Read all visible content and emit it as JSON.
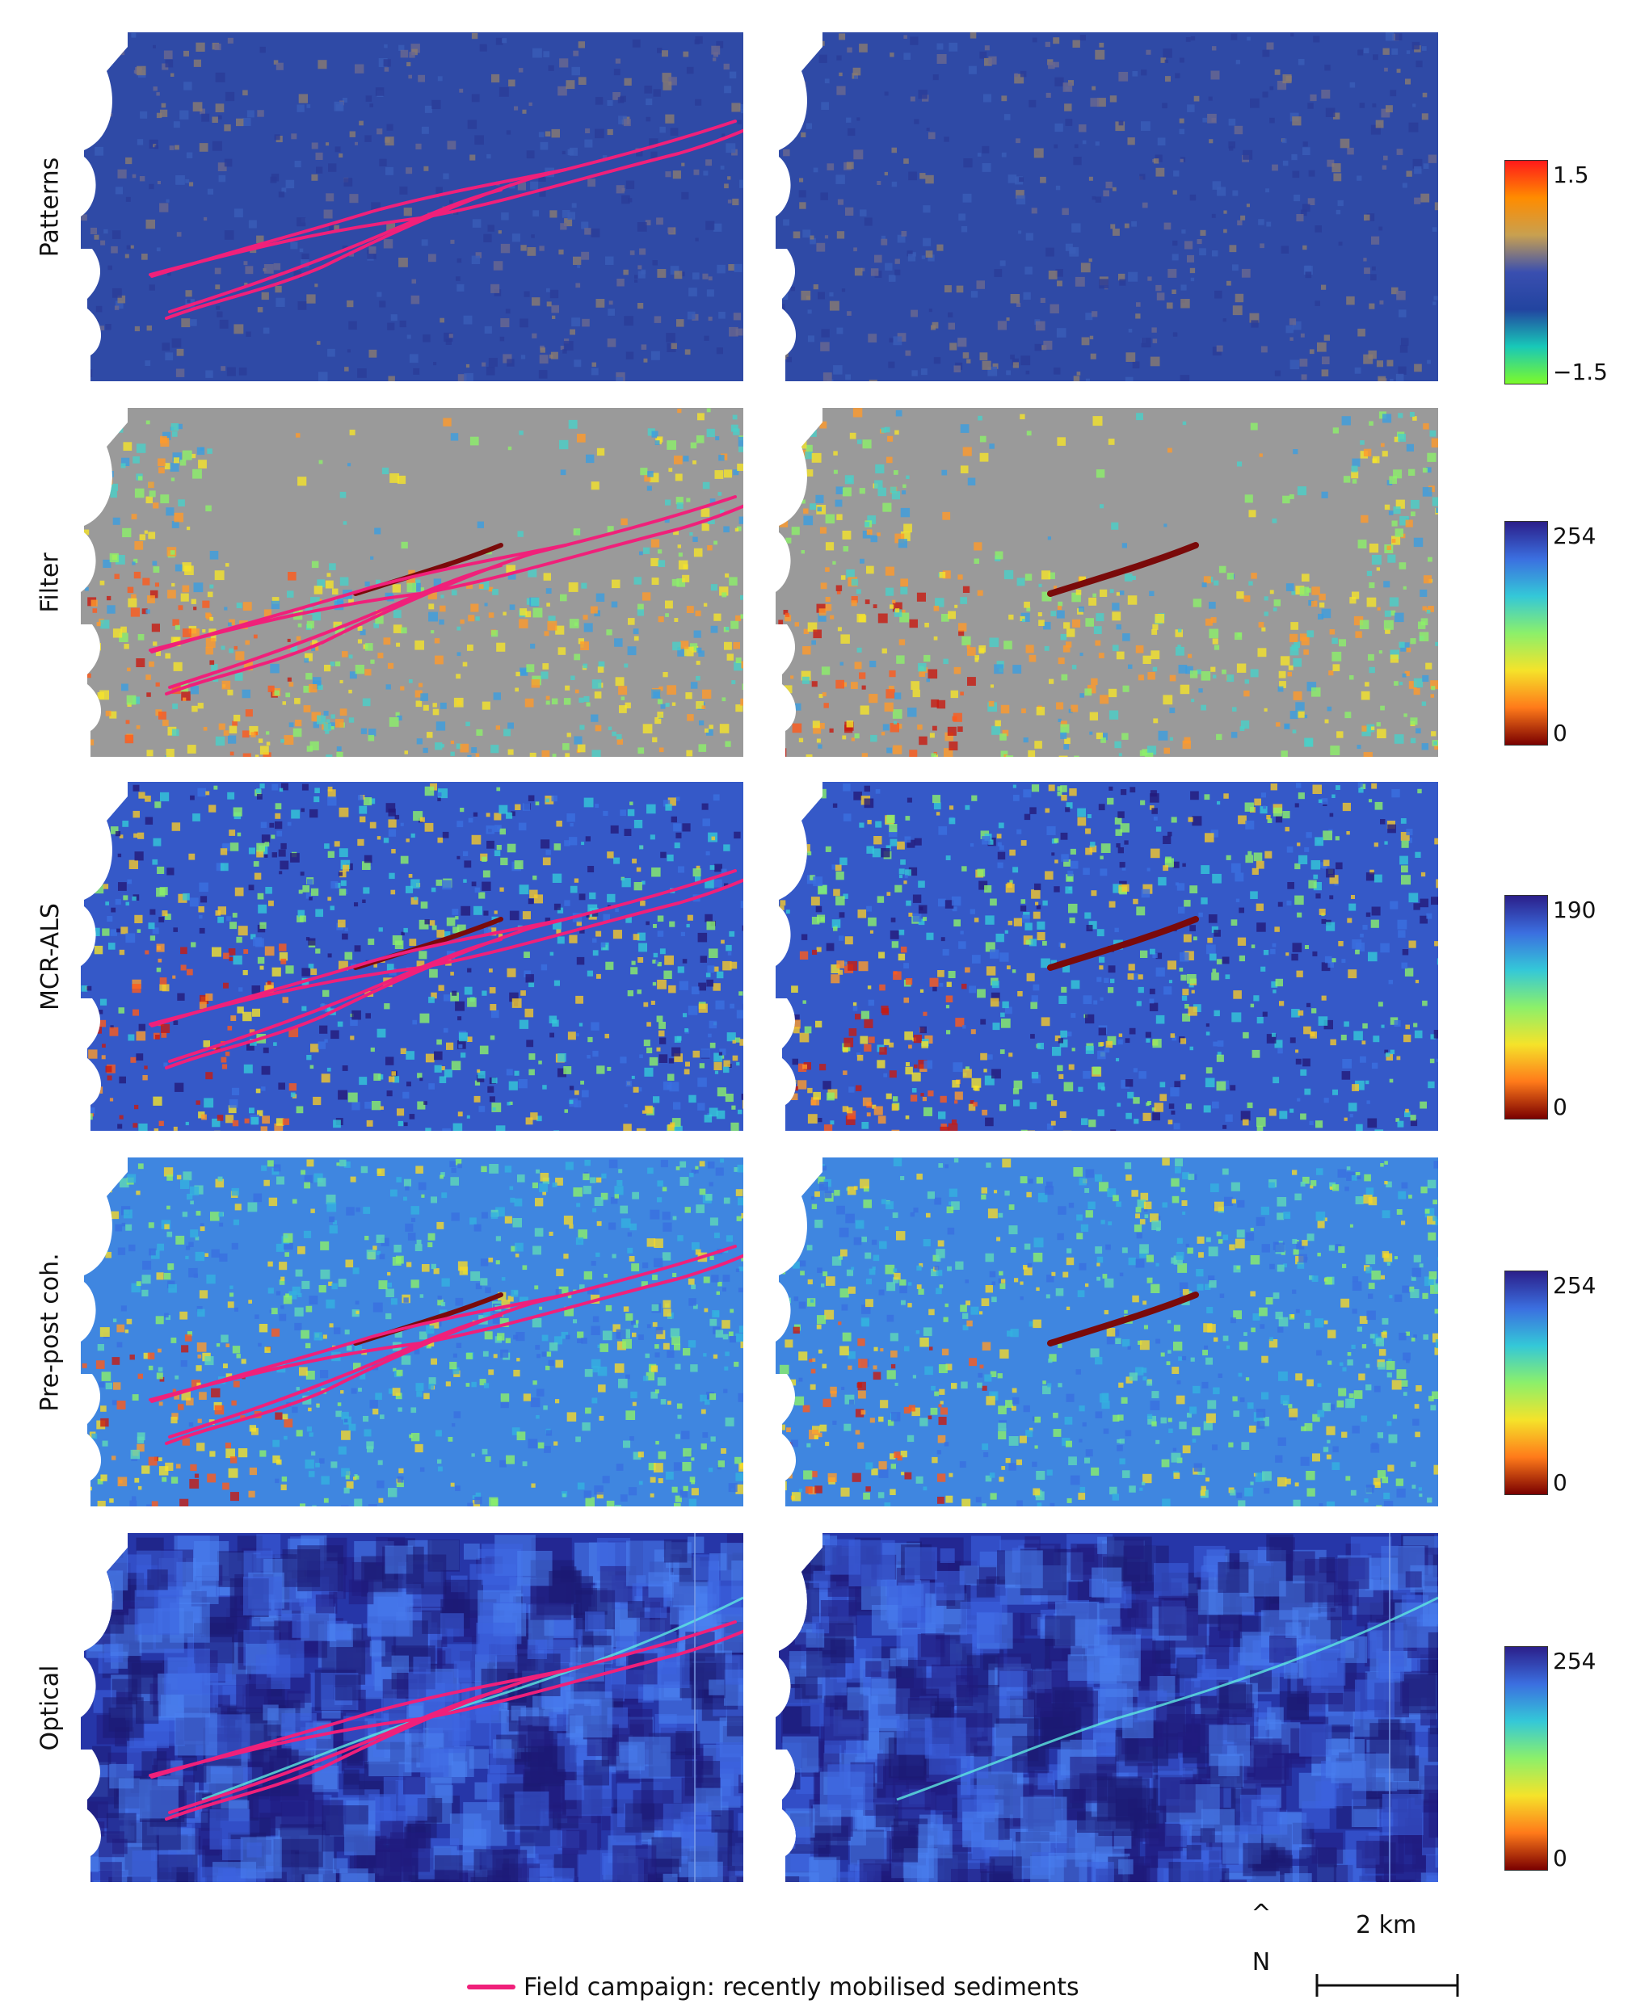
{
  "rows": [
    {
      "label": "Patterns",
      "style": "patterns",
      "colorbar": {
        "top": "1.5",
        "bottom": "−1.5",
        "colors": [
          "#ff1a1a",
          "#ff8c00",
          "#c8a050",
          "#3a4fb0",
          "#2244a0",
          "#18c8b8",
          "#7cfa2a"
        ]
      }
    },
    {
      "label": "Filter",
      "style": "filter",
      "colorbar": {
        "top": "254",
        "bottom": "0",
        "colors": [
          "#2b1f8a",
          "#3b6fe0",
          "#34c8d8",
          "#8cf06a",
          "#f5e32a",
          "#ff7a1a",
          "#7a0000"
        ]
      }
    },
    {
      "label": "MCR-ALS",
      "style": "mcr",
      "colorbar": {
        "top": "190",
        "bottom": "0",
        "colors": [
          "#2b1f8a",
          "#3b6fe0",
          "#34c8d8",
          "#8cf06a",
          "#f5e32a",
          "#ff7a1a",
          "#7a0000"
        ]
      }
    },
    {
      "label": "Pre-post coh.",
      "style": "coh",
      "colorbar": {
        "top": "254",
        "bottom": "0",
        "colors": [
          "#2b1f8a",
          "#3b6fe0",
          "#34c8d8",
          "#8cf06a",
          "#f5e32a",
          "#ff7a1a",
          "#7a0000"
        ]
      }
    },
    {
      "label": "Optical",
      "style": "optical",
      "colorbar": {
        "top": "254",
        "bottom": "0",
        "colors": [
          "#2b1f8a",
          "#3b6fe0",
          "#34c8d8",
          "#8cf06a",
          "#f5e32a",
          "#ff7a1a",
          "#7a0000"
        ]
      }
    }
  ],
  "legend": {
    "label": "Field campaign: recently mobilised sediments",
    "color": "#f0207a"
  },
  "north": {
    "arrow": "^",
    "letter": "N"
  },
  "scale": {
    "label": "2 km"
  }
}
